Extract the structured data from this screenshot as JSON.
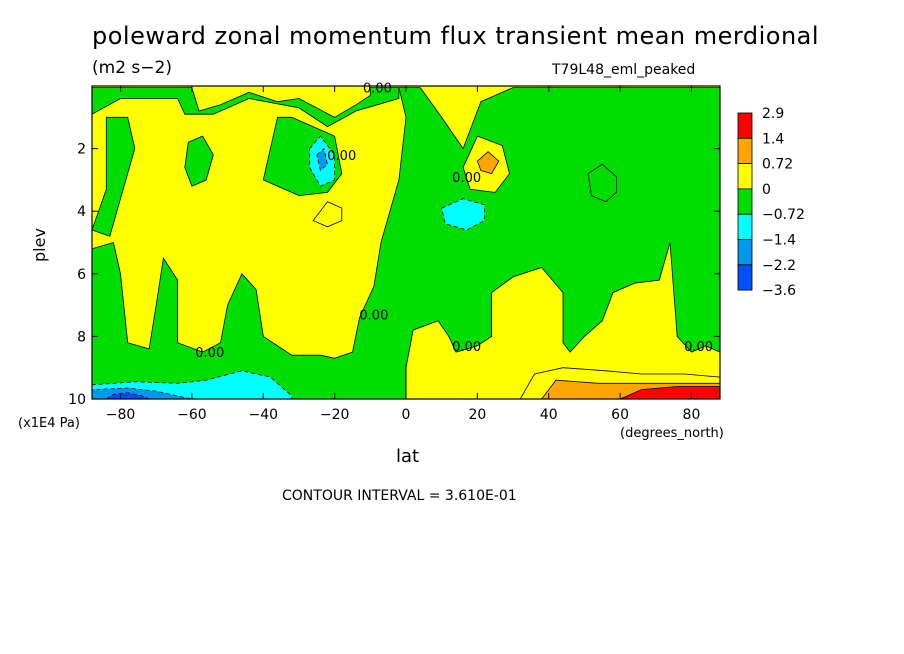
{
  "title": "poleward zonal momentum flux transient mean merdional",
  "units": "(m2 s−2)",
  "run_label": "T79L48_eml_peaked",
  "contour_interval": "CONTOUR INTERVAL = 3.610E-01",
  "colors": {
    "red": "#ff0000",
    "orange": "#ffa500",
    "yellow": "#ffff00",
    "green": "#00dd00",
    "cyan": "#00ffff",
    "blue1": "#0099ee",
    "blue2": "#0050ff"
  },
  "chart_data": {
    "type": "heatmap",
    "xlabel": "lat",
    "x_units": "(degrees_north)",
    "ylabel": "plev",
    "y_units": "(x1E4 Pa)",
    "xlim": [
      -88,
      88
    ],
    "ylim": [
      10,
      0
    ],
    "x_ticks": [
      -80,
      -60,
      -40,
      -20,
      0,
      20,
      40,
      60,
      80
    ],
    "y_ticks": [
      2,
      4,
      6,
      8,
      10
    ],
    "colorbar": {
      "levels": [
        "2.9",
        "1.4",
        "0.72",
        "0",
        "−0.72",
        "−1.4",
        "−2.2",
        "−3.6"
      ],
      "colors": [
        "#ff0000",
        "#ffa500",
        "#ffff00",
        "#00dd00",
        "#00ffff",
        "#0099ee",
        "#0050ff"
      ]
    },
    "contour_labels": [
      {
        "text": "0.00",
        "x": -8,
        "y": 0.05
      },
      {
        "text": "0.00",
        "x": -18,
        "y": 2.2
      },
      {
        "text": "0.00",
        "x": 17,
        "y": 2.9
      },
      {
        "text": "0.00",
        "x": -9,
        "y": 7.3
      },
      {
        "text": "0.00",
        "x": -55,
        "y": 8.5
      },
      {
        "text": "0.00",
        "x": 17,
        "y": 8.3
      },
      {
        "text": "0.00",
        "x": 82,
        "y": 8.3
      }
    ],
    "regions": [
      {
        "level": "0",
        "polygon": [
          [
            -88,
            10
          ],
          [
            -88,
            5.2
          ],
          [
            -82,
            5.0
          ],
          [
            -80,
            6.0
          ],
          [
            -78,
            8.2
          ],
          [
            -72,
            8.4
          ],
          [
            -70,
            7.0
          ],
          [
            -68,
            5.5
          ],
          [
            -64,
            6.2
          ],
          [
            -64,
            8.2
          ],
          [
            -57,
            8.5
          ],
          [
            -52,
            8.2
          ],
          [
            -50,
            7.0
          ],
          [
            -46,
            6.0
          ],
          [
            -42,
            6.5
          ],
          [
            -40,
            8.0
          ],
          [
            -32,
            8.6
          ],
          [
            -24,
            8.6
          ],
          [
            -20,
            8.7
          ],
          [
            -15,
            8.5
          ],
          [
            -13,
            7.4
          ],
          [
            -9,
            6.4
          ],
          [
            -7,
            5.0
          ],
          [
            -2,
            3.0
          ],
          [
            0,
            1.0
          ],
          [
            -2,
            0.05
          ],
          [
            4,
            0.05
          ],
          [
            10,
            1.0
          ],
          [
            16,
            2.0
          ],
          [
            21,
            0.5
          ],
          [
            30,
            0.05
          ],
          [
            88,
            0.05
          ],
          [
            88,
            8.5
          ],
          [
            84,
            8.3
          ],
          [
            80,
            8.5
          ],
          [
            76,
            8.0
          ],
          [
            74,
            5.0
          ],
          [
            71,
            6.2
          ],
          [
            64,
            6.3
          ],
          [
            58,
            6.6
          ],
          [
            55,
            7.5
          ],
          [
            50,
            8.0
          ],
          [
            46,
            8.5
          ],
          [
            44,
            8.2
          ],
          [
            44,
            6.6
          ],
          [
            38,
            5.8
          ],
          [
            30,
            6.1
          ],
          [
            24,
            6.6
          ],
          [
            24,
            8.0
          ],
          [
            20,
            8.3
          ],
          [
            14,
            8.5
          ],
          [
            12,
            8.0
          ],
          [
            9,
            7.5
          ],
          [
            2,
            7.8
          ],
          [
            0,
            9.0
          ],
          [
            0,
            10
          ]
        ]
      },
      {
        "level": "0",
        "polygon": [
          [
            -88,
            4.6
          ],
          [
            -84,
            3.3
          ],
          [
            -84,
            1.0
          ],
          [
            -78,
            1.0
          ],
          [
            -76,
            2.0
          ],
          [
            -80,
            3.6
          ],
          [
            -83,
            4.8
          ]
        ]
      },
      {
        "level": "0",
        "polygon": [
          [
            -88,
            0.05
          ],
          [
            -60,
            0.05
          ],
          [
            -58,
            0.8
          ],
          [
            -52,
            0.6
          ],
          [
            -44,
            0.2
          ],
          [
            -36,
            0.5
          ],
          [
            -30,
            0.4
          ],
          [
            -20,
            1.0
          ],
          [
            -14,
            0.6
          ],
          [
            -10,
            0.3
          ],
          [
            -10,
            0.05
          ],
          [
            -2,
            0.05
          ],
          [
            -2,
            0.4
          ],
          [
            -14,
            0.8
          ],
          [
            -22,
            1.3
          ],
          [
            -30,
            0.7
          ],
          [
            -44,
            0.4
          ],
          [
            -54,
            0.9
          ],
          [
            -62,
            0.9
          ],
          [
            -64,
            0.4
          ],
          [
            -80,
            0.4
          ],
          [
            -88,
            0.9
          ]
        ]
      },
      {
        "level": "0",
        "polygon": [
          [
            -61,
            1.8
          ],
          [
            -57,
            1.6
          ],
          [
            -54,
            2.2
          ],
          [
            -56,
            3.0
          ],
          [
            -60,
            3.2
          ],
          [
            -62,
            2.6
          ]
        ]
      },
      {
        "level": "0",
        "polygon": [
          [
            -40,
            3.0
          ],
          [
            -36,
            1.0
          ],
          [
            -32,
            1.0
          ],
          [
            -20,
            1.6
          ],
          [
            -18,
            2.8
          ],
          [
            -22,
            3.4
          ],
          [
            -30,
            3.5
          ]
        ]
      },
      {
        "level": "0",
        "polygon": [
          [
            51,
            2.8
          ],
          [
            55,
            2.5
          ],
          [
            59,
            2.9
          ],
          [
            59,
            3.4
          ],
          [
            56,
            3.7
          ],
          [
            52,
            3.5
          ]
        ]
      },
      {
        "level": "0.72",
        "polygon": [
          [
            -22,
            3.7
          ],
          [
            -18,
            3.9
          ],
          [
            -18,
            4.3
          ],
          [
            -22,
            4.5
          ],
          [
            -26,
            4.3
          ]
        ]
      },
      {
        "level": "0.72",
        "polygon": [
          [
            16,
            2.6
          ],
          [
            20,
            1.6
          ],
          [
            27,
            1.9
          ],
          [
            29,
            2.8
          ],
          [
            25,
            3.4
          ],
          [
            18,
            3.3
          ]
        ]
      },
      {
        "level": "1.4",
        "polygon": [
          [
            20,
            2.4
          ],
          [
            23,
            2.1
          ],
          [
            26,
            2.4
          ],
          [
            24,
            2.8
          ],
          [
            21,
            2.7
          ]
        ]
      },
      {
        "level": "−0.72",
        "polygon": [
          [
            -27,
            2.0
          ],
          [
            -24,
            1.6
          ],
          [
            -20,
            2.2
          ],
          [
            -20,
            3.0
          ],
          [
            -24,
            3.2
          ],
          [
            -27,
            2.6
          ]
        ]
      },
      {
        "level": "−1.4",
        "polygon": [
          [
            -25,
            2.2
          ],
          [
            -23,
            2.0
          ],
          [
            -22,
            2.5
          ],
          [
            -24,
            2.7
          ]
        ]
      },
      {
        "level": "−0.72",
        "polygon": [
          [
            10,
            3.9
          ],
          [
            16,
            3.6
          ],
          [
            22,
            3.8
          ],
          [
            22,
            4.3
          ],
          [
            17,
            4.6
          ],
          [
            11,
            4.4
          ]
        ]
      },
      {
        "level": "0.72",
        "polygon": [
          [
            32,
            10
          ],
          [
            36,
            9.2
          ],
          [
            44,
            9.0
          ],
          [
            56,
            9.1
          ],
          [
            66,
            9.2
          ],
          [
            78,
            9.2
          ],
          [
            88,
            9.3
          ],
          [
            88,
            10
          ]
        ]
      },
      {
        "level": "1.4",
        "polygon": [
          [
            38,
            10
          ],
          [
            42,
            9.4
          ],
          [
            54,
            9.5
          ],
          [
            66,
            9.5
          ],
          [
            78,
            9.5
          ],
          [
            88,
            9.5
          ],
          [
            88,
            10
          ]
        ]
      },
      {
        "level": "2.9",
        "polygon": [
          [
            60,
            10
          ],
          [
            66,
            9.7
          ],
          [
            76,
            9.6
          ],
          [
            88,
            9.6
          ],
          [
            88,
            10
          ]
        ]
      },
      {
        "level": "−0.72",
        "polygon": [
          [
            -88,
            10
          ],
          [
            -88,
            9.55
          ],
          [
            -76,
            9.45
          ],
          [
            -64,
            9.5
          ],
          [
            -56,
            9.4
          ],
          [
            -46,
            9.1
          ],
          [
            -38,
            9.3
          ],
          [
            -32,
            9.9
          ],
          [
            -32,
            10
          ]
        ]
      },
      {
        "level": "−1.4",
        "polygon": [
          [
            -88,
            10
          ],
          [
            -88,
            9.7
          ],
          [
            -78,
            9.65
          ],
          [
            -70,
            9.75
          ],
          [
            -64,
            9.9
          ],
          [
            -60,
            10
          ]
        ]
      },
      {
        "level": "−2.2",
        "polygon": [
          [
            -84,
            10
          ],
          [
            -82,
            9.85
          ],
          [
            -78,
            9.8
          ],
          [
            -74,
            9.9
          ],
          [
            -72,
            10
          ]
        ]
      }
    ]
  }
}
